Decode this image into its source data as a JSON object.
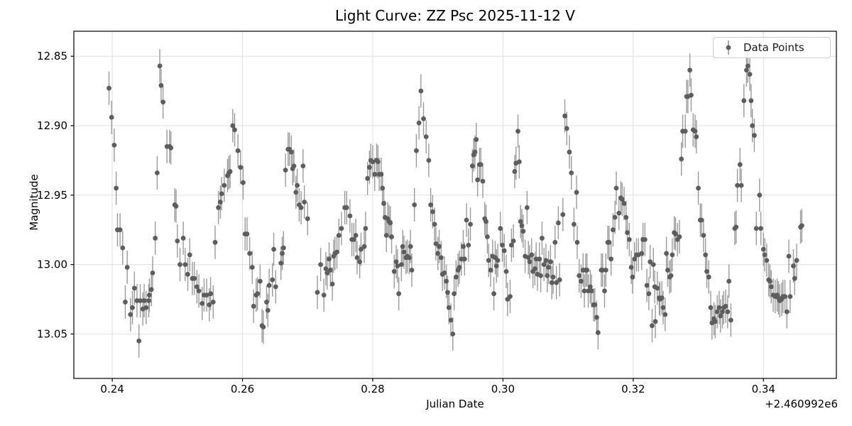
{
  "title": "Light Curve: ZZ Psc 2025-11-12 V",
  "axes": {
    "xlabel": "Julian Date",
    "ylabel": "Magnitude",
    "x_offset_text": "+2.460992e6"
  },
  "legend": {
    "label": "Data Points"
  },
  "colors": {
    "marker": "#5d5d5d",
    "errorbar": "#8f8f8f",
    "grid": "#dfdfdf",
    "spine": "#000000",
    "text": "#000000",
    "background": "#ffffff",
    "legend_border": "#cccccc"
  },
  "chart_data": {
    "type": "scatter",
    "title": "Light Curve: ZZ Psc 2025-11-12 V",
    "xlabel": "Julian Date",
    "ylabel": "Magnitude",
    "x_offset": 2460992,
    "x_offset_label": "+2.460992e6",
    "legend_entries": [
      "Data Points"
    ],
    "legend_position": "upper right",
    "grid": true,
    "y_axis_inverted": true,
    "xlim": [
      0.2341,
      0.3512
    ],
    "ylim": [
      13.082,
      12.832
    ],
    "xticks": [
      0.24,
      0.26,
      0.28,
      0.3,
      0.32,
      0.34
    ],
    "yticks": [
      12.85,
      12.9,
      12.95,
      13.0,
      13.05
    ],
    "yerr": 0.012,
    "marker": "o",
    "x": [
      0.2395,
      0.2399,
      0.2403,
      0.2406,
      0.2408,
      0.2412,
      0.2416,
      0.242,
      0.2423,
      0.2428,
      0.2431,
      0.2434,
      0.2438,
      0.2441,
      0.2443,
      0.2447,
      0.2449,
      0.2452,
      0.2456,
      0.2457,
      0.246,
      0.2462,
      0.2466,
      0.2469,
      0.2473,
      0.2475,
      0.2478,
      0.2484,
      0.2488,
      0.249,
      0.2496,
      0.2498,
      0.25,
      0.2504,
      0.2509,
      0.2512,
      0.2516,
      0.2519,
      0.2523,
      0.2526,
      0.253,
      0.2533,
      0.2538,
      0.2541,
      0.2545,
      0.2549,
      0.2551,
      0.2555,
      0.2558,
      0.2563,
      0.2566,
      0.2568,
      0.2572,
      0.2577,
      0.2579,
      0.2581,
      0.2585,
      0.2588,
      0.2593,
      0.2597,
      0.2601,
      0.2604,
      0.2607,
      0.2611,
      0.2615,
      0.2617,
      0.2621,
      0.2623,
      0.2627,
      0.263,
      0.2632,
      0.2637,
      0.2639,
      0.2641,
      0.2646,
      0.2648,
      0.2651,
      0.2659,
      0.2661,
      0.2663,
      0.2666,
      0.267,
      0.2672,
      0.2675,
      0.2677,
      0.2679,
      0.2682,
      0.2684,
      0.2687,
      0.269,
      0.2693,
      0.2695,
      0.27,
      0.2715,
      0.272,
      0.2725,
      0.2728,
      0.273,
      0.2733,
      0.2735,
      0.2738,
      0.274,
      0.2742,
      0.2745,
      0.2748,
      0.2752,
      0.2757,
      0.276,
      0.2765,
      0.2768,
      0.2771,
      0.2774,
      0.2776,
      0.278,
      0.2782,
      0.2787,
      0.2789,
      0.2792,
      0.2795,
      0.2797,
      0.28,
      0.2803,
      0.2806,
      0.2808,
      0.281,
      0.2813,
      0.2815,
      0.2817,
      0.2819,
      0.2821,
      0.2823,
      0.2825,
      0.2827,
      0.2829,
      0.2833,
      0.2836,
      0.2838,
      0.284,
      0.2844,
      0.2846,
      0.2848,
      0.2851,
      0.2853,
      0.2856,
      0.2858,
      0.286,
      0.2864,
      0.2867,
      0.2871,
      0.2874,
      0.2878,
      0.2882,
      0.2886,
      0.2889,
      0.2892,
      0.2895,
      0.2897,
      0.29,
      0.2902,
      0.2905,
      0.2907,
      0.291,
      0.2913,
      0.2915,
      0.2917,
      0.292,
      0.2923,
      0.2925,
      0.2928,
      0.2931,
      0.2933,
      0.2936,
      0.2939,
      0.2941,
      0.2944,
      0.2947,
      0.295,
      0.2953,
      0.2955,
      0.2957,
      0.2959,
      0.2961,
      0.2964,
      0.2966,
      0.2969,
      0.2972,
      0.2974,
      0.2976,
      0.2978,
      0.2981,
      0.2984,
      0.2986,
      0.2988,
      0.299,
      0.2992,
      0.2996,
      0.2999,
      0.3002,
      0.3005,
      0.3007,
      0.3011,
      0.3013,
      0.3016,
      0.3018,
      0.302,
      0.3023,
      0.3025,
      0.3027,
      0.3029,
      0.3031,
      0.3034,
      0.3037,
      0.3039,
      0.3041,
      0.3044,
      0.3046,
      0.3049,
      0.3051,
      0.3053,
      0.3056,
      0.3058,
      0.306,
      0.3063,
      0.3066,
      0.3068,
      0.307,
      0.3073,
      0.3075,
      0.3077,
      0.308,
      0.3082,
      0.3085,
      0.3087,
      0.3092,
      0.3095,
      0.3098,
      0.3102,
      0.3105,
      0.3109,
      0.3113,
      0.3114,
      0.3117,
      0.312,
      0.3123,
      0.3125,
      0.3127,
      0.3129,
      0.3131,
      0.3134,
      0.3136,
      0.3139,
      0.3141,
      0.3144,
      0.3146,
      0.3151,
      0.3153,
      0.3156,
      0.3158,
      0.3161,
      0.3163,
      0.3166,
      0.3169,
      0.3172,
      0.3174,
      0.3178,
      0.3181,
      0.3183,
      0.3186,
      0.3189,
      0.3191,
      0.3194,
      0.3197,
      0.3199,
      0.3202,
      0.3205,
      0.3208,
      0.3213,
      0.3215,
      0.3218,
      0.3221,
      0.3224,
      0.3226,
      0.3229,
      0.3231,
      0.3233,
      0.3234,
      0.3237,
      0.324,
      0.3241,
      0.3244,
      0.3246,
      0.3249,
      0.3251,
      0.3253,
      0.3256,
      0.3258,
      0.326,
      0.3263,
      0.3265,
      0.3268,
      0.3271,
      0.3274,
      0.3276,
      0.328,
      0.3282,
      0.3284,
      0.3287,
      0.3289,
      0.3292,
      0.3295,
      0.3297,
      0.33,
      0.3303,
      0.3305,
      0.3308,
      0.3311,
      0.3313,
      0.3316,
      0.3319,
      0.3321,
      0.3324,
      0.3326,
      0.3329,
      0.3332,
      0.3334,
      0.3337,
      0.3339,
      0.3342,
      0.3345,
      0.3347,
      0.335,
      0.3356,
      0.3358,
      0.336,
      0.3364,
      0.3366,
      0.337,
      0.3374,
      0.3376,
      0.3379,
      0.3381,
      0.3383,
      0.3386,
      0.3389,
      0.3394,
      0.3396,
      0.34,
      0.3402,
      0.3405,
      0.3408,
      0.341,
      0.3412,
      0.3415,
      0.3418,
      0.3421,
      0.3423,
      0.3425,
      0.3428,
      0.343,
      0.3433,
      0.3436,
      0.3439,
      0.3441,
      0.3446,
      0.3448,
      0.3451,
      0.3457,
      0.3459
    ],
    "y": [
      12.873,
      12.894,
      12.914,
      12.945,
      12.975,
      12.975,
      12.988,
      13.027,
      13.002,
      13.036,
      13.031,
      13.017,
      13.026,
      13.055,
      13.026,
      13.032,
      13.026,
      13.031,
      13.026,
      13.022,
      13.018,
      13.006,
      12.981,
      12.934,
      12.857,
      12.871,
      12.883,
      12.915,
      12.915,
      12.916,
      12.957,
      12.958,
      12.983,
      13.0,
      12.981,
      13.0,
      13.007,
      12.993,
      13.01,
      13.01,
      13.016,
      13.019,
      13.028,
      13.022,
      13.022,
      13.029,
      13.021,
      13.027,
      12.984,
      12.959,
      12.955,
      12.949,
      12.943,
      12.936,
      12.934,
      12.933,
      12.9,
      12.903,
      12.918,
      12.93,
      12.941,
      12.978,
      12.978,
      12.992,
      13.002,
      13.03,
      13.022,
      13.021,
      13.012,
      13.044,
      13.045,
      13.027,
      13.033,
      13.015,
      13.011,
      12.989,
      13.016,
      12.999,
      12.992,
      12.988,
      12.932,
      12.917,
      12.917,
      12.919,
      12.931,
      12.929,
      12.948,
      12.943,
      12.957,
      12.959,
      12.929,
      12.955,
      12.967,
      13.02,
      13.0,
      13.022,
      13.003,
      13.006,
      12.996,
      13.004,
      13.014,
      12.994,
      12.992,
      12.991,
      12.979,
      12.974,
      12.959,
      12.959,
      12.965,
      12.982,
      12.982,
      12.979,
      12.995,
      12.998,
      12.989,
      12.987,
      12.974,
      12.938,
      12.93,
      12.925,
      12.926,
      12.935,
      12.925,
      12.926,
      12.935,
      12.935,
      12.945,
      12.956,
      12.966,
      12.979,
      12.967,
      12.969,
      12.97,
      12.98,
      13.005,
      12.998,
      13.001,
      13.021,
      13.0,
      12.987,
      12.991,
      12.995,
      12.994,
      12.995,
      12.987,
      13.004,
      12.957,
      12.918,
      12.898,
      12.875,
      12.895,
      12.908,
      12.925,
      12.957,
      12.962,
      12.971,
      12.985,
      12.992,
      12.987,
      12.995,
      13.007,
      13.006,
      13.012,
      13.02,
      13.031,
      13.04,
      13.05,
      13.021,
      13.009,
      13.004,
      13.002,
      12.996,
      12.987,
      12.996,
      12.968,
      12.986,
      12.971,
      12.929,
      12.921,
      12.919,
      12.91,
      12.939,
      12.928,
      12.928,
      12.94,
      12.967,
      12.969,
      12.98,
      12.997,
      13.004,
      12.994,
      13.021,
      12.995,
      13.001,
      12.997,
      12.974,
      12.986,
      12.99,
      13.005,
      13.025,
      13.023,
      12.986,
      12.983,
      12.933,
      12.927,
      12.904,
      12.926,
      12.969,
      12.972,
      12.976,
      12.994,
      12.959,
      12.995,
      12.998,
      12.993,
      13.005,
      13.003,
      12.996,
      13.007,
      12.996,
      13.008,
      12.981,
      13.0,
      12.997,
      13.008,
      13.002,
      12.998,
      13.013,
      13.009,
      12.984,
      13.013,
      12.97,
      13.011,
      12.964,
      12.893,
      12.902,
      12.919,
      12.934,
      12.971,
      12.948,
      12.984,
      13.008,
      13.012,
      13.004,
      13.019,
      13.004,
      13.004,
      13.019,
      13.016,
      13.019,
      13.029,
      13.029,
      13.038,
      13.049,
      13.004,
      13.004,
      13.019,
      13.004,
      12.984,
      12.984,
      12.996,
      12.975,
      12.966,
      12.945,
      12.963,
      12.952,
      12.953,
      12.956,
      12.966,
      12.977,
      12.982,
      13.002,
      13.009,
      12.996,
      12.993,
      12.993,
      12.992,
      12.982,
      12.982,
      13.015,
      13.021,
      12.998,
      13.044,
      13.0,
      13.016,
      13.041,
      13.017,
      13.024,
      13.025,
      13.024,
      13.031,
      13.036,
      12.992,
      13.004,
      13.009,
      13.008,
      12.993,
      12.977,
      12.978,
      12.982,
      12.98,
      12.924,
      12.904,
      12.904,
      12.879,
      12.879,
      12.86,
      12.878,
      12.903,
      12.904,
      12.908,
      12.945,
      12.968,
      12.968,
      12.979,
      12.993,
      13.005,
      13.009,
      13.031,
      13.042,
      13.039,
      13.041,
      13.034,
      13.031,
      13.037,
      13.034,
      13.031,
      13.03,
      13.034,
      13.012,
      13.04,
      12.974,
      12.973,
      12.943,
      12.928,
      12.943,
      12.882,
      12.86,
      12.857,
      12.863,
      12.882,
      12.9,
      12.907,
      12.974,
      12.95,
      12.974,
      12.989,
      12.993,
      12.997,
      13.011,
      13.012,
      13.016,
      13.022,
      13.023,
      13.022,
      13.024,
      13.026,
      13.025,
      13.023,
      13.023,
      13.034,
      12.994,
      13.023,
      13.001,
      13.01,
      12.997,
      12.973,
      12.972
    ]
  }
}
